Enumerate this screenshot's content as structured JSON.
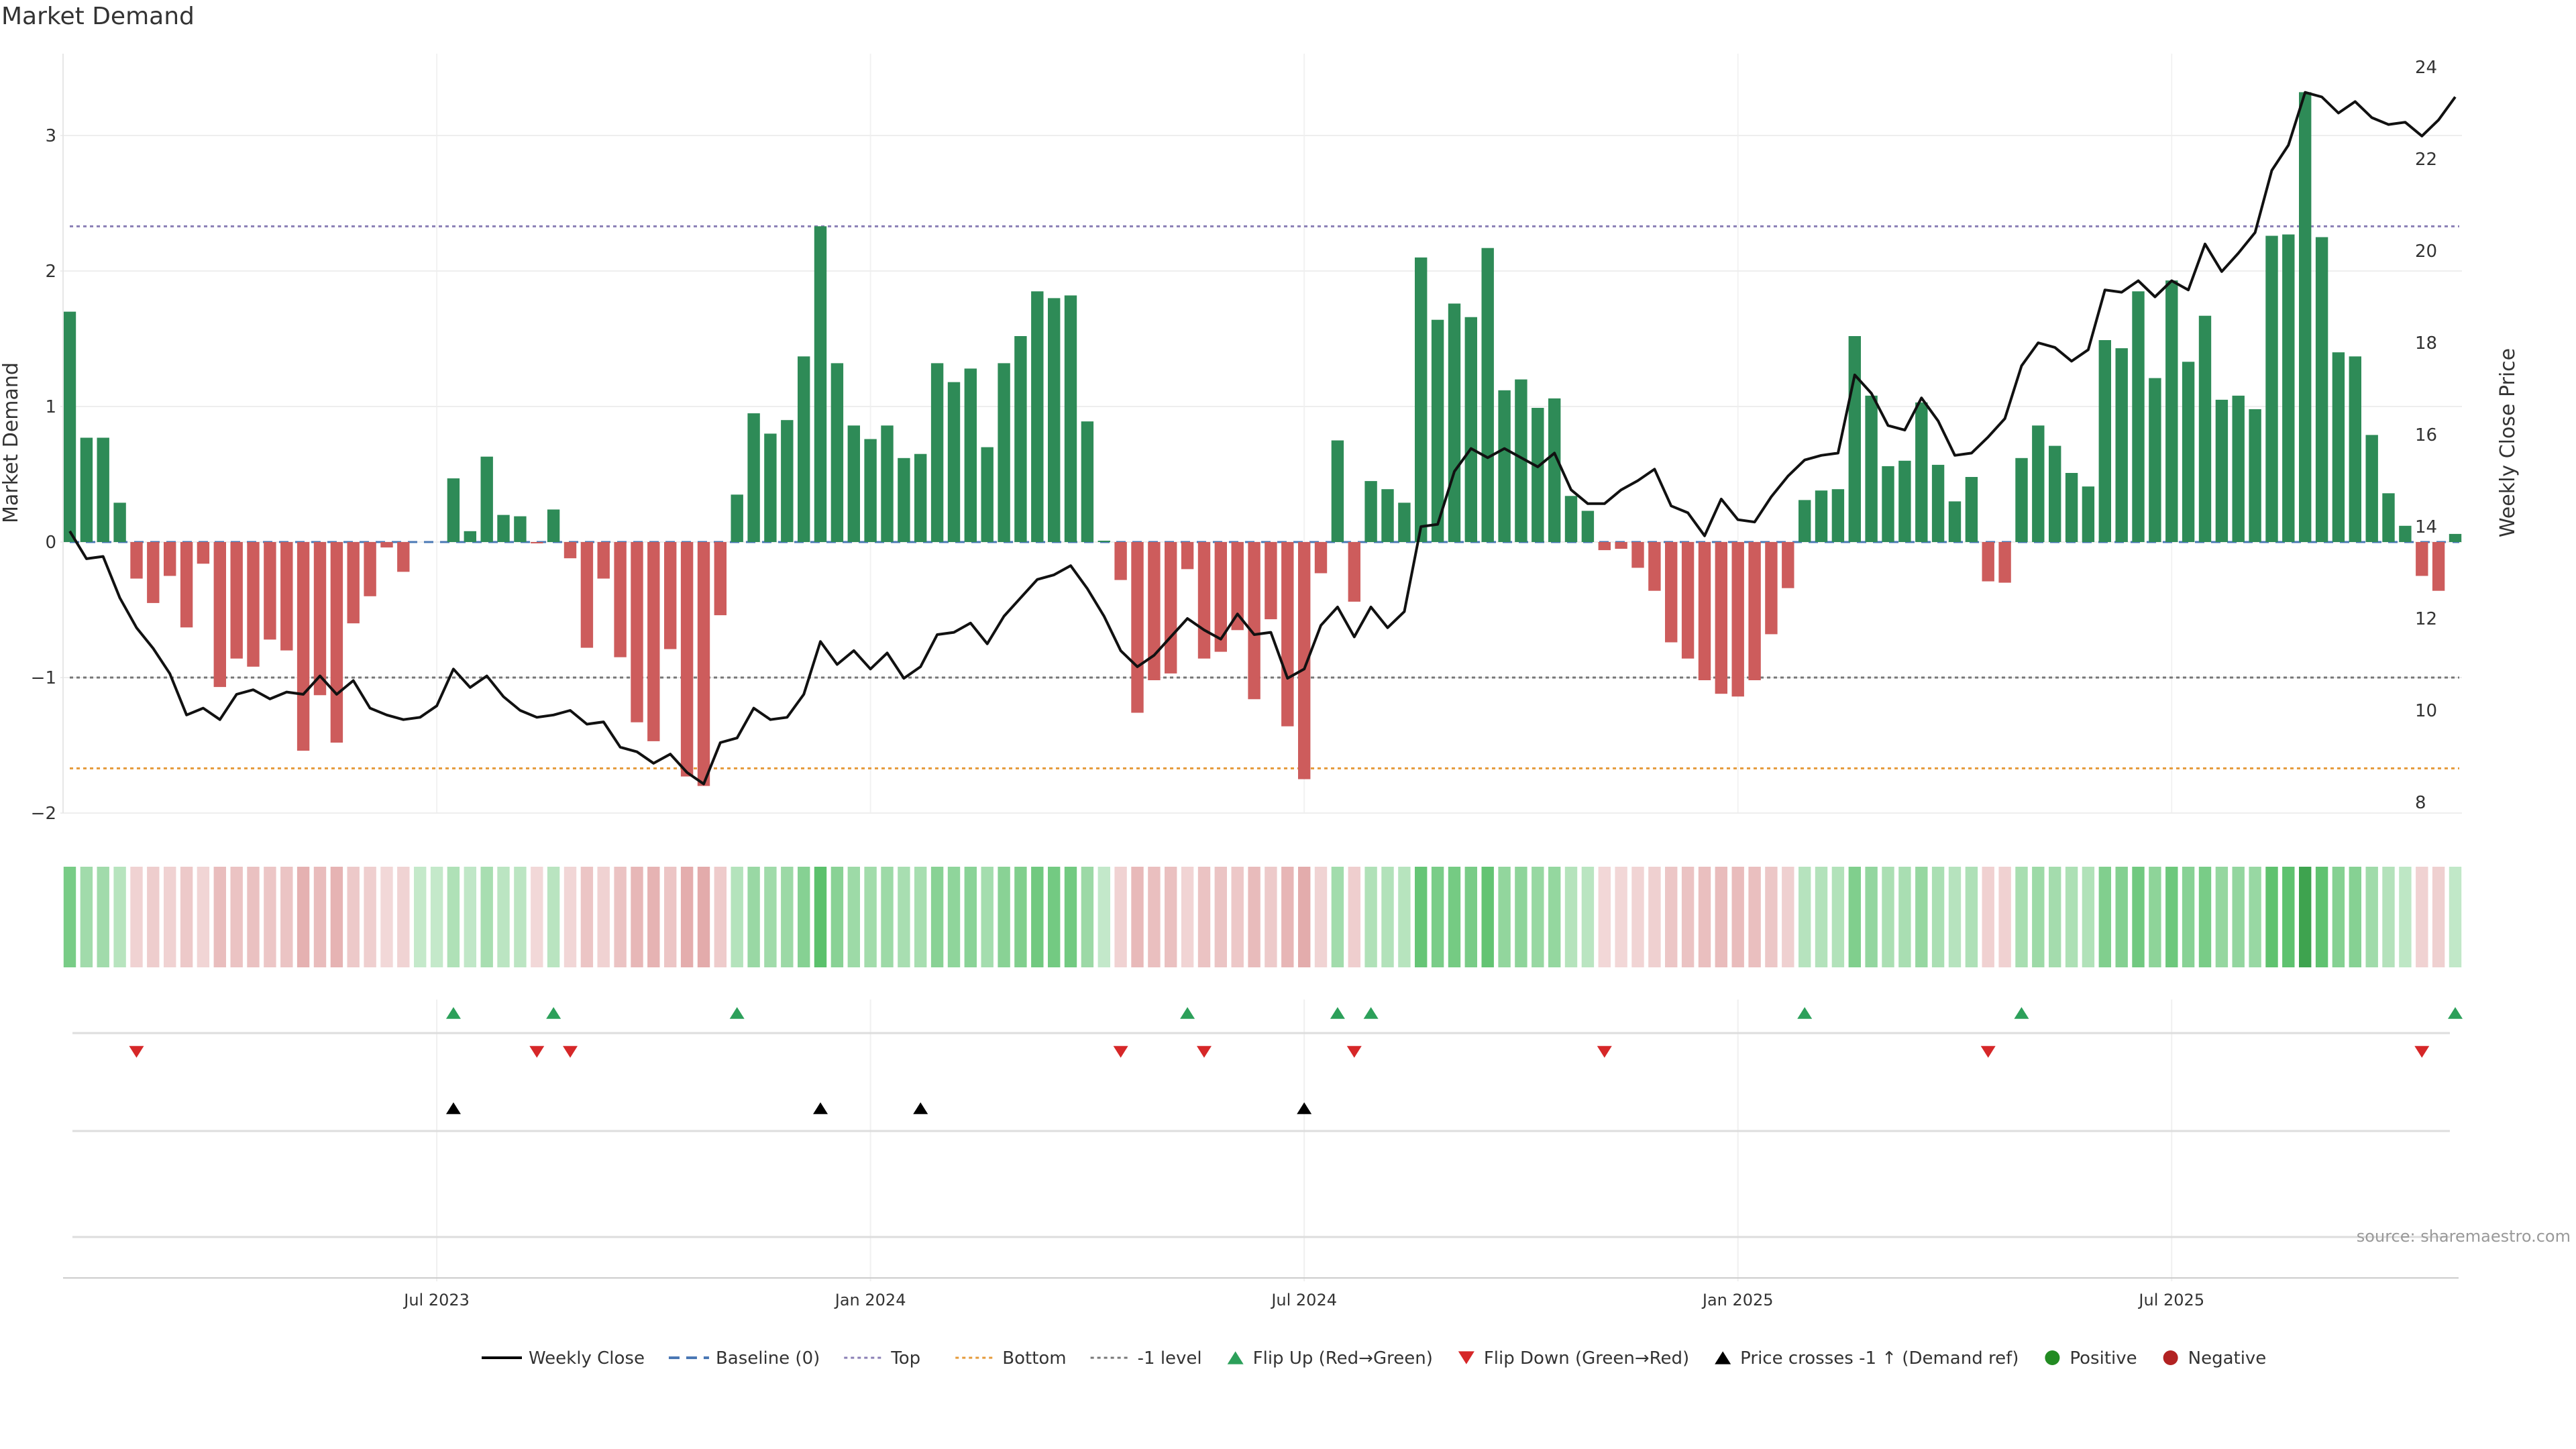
{
  "chart_data": {
    "type": "bar",
    "title": "Market Demand",
    "ylabel_left": "Market Demand",
    "ylabel_right": "Weekly Close Price",
    "source": "source: sharemaestro.com",
    "x_tick_labels": [
      {
        "label": "Jul 2023",
        "week": 22
      },
      {
        "label": "Jan 2024",
        "week": 48
      },
      {
        "label": "Jul 2024",
        "week": 74
      },
      {
        "label": "Jan 2025",
        "week": 100
      },
      {
        "label": "Jul 2025",
        "week": 126
      }
    ],
    "y_left": {
      "min": -2.0,
      "max": 3.0,
      "ticks": [
        "−2",
        "−1",
        "0",
        "1",
        "2",
        "3"
      ],
      "tick_values": [
        -2,
        -1,
        0,
        1,
        2,
        3
      ],
      "range": [
        -2.2,
        3.6
      ]
    },
    "y_right": {
      "ticks": [
        "8",
        "10",
        "12",
        "14",
        "16",
        "18",
        "20",
        "22",
        "24"
      ],
      "tick_values": [
        8,
        10,
        12,
        14,
        16,
        18,
        20,
        22,
        24
      ],
      "range": [
        7.4,
        24.4
      ]
    },
    "reference_lines": {
      "top": 2.33,
      "bottom": -1.67,
      "minus_one": -1.0,
      "baseline": 0
    },
    "colors": {
      "positive": "#2e8b57",
      "negative": "#cd5c5c",
      "price": "#111111",
      "top": "#8a7fb5",
      "bottom": "#e59a3a",
      "minus_one": "#777777",
      "baseline": "#4a78b5",
      "flip_up": "#2ca05a",
      "flip_down": "#d62728",
      "cross": "#000000"
    },
    "demand": [
      1.7,
      0.77,
      0.77,
      0.29,
      -0.27,
      -0.45,
      -0.25,
      -0.63,
      -0.16,
      -1.07,
      -0.86,
      -0.92,
      -0.72,
      -0.8,
      -1.54,
      -1.13,
      -1.48,
      -0.6,
      -0.4,
      -0.04,
      -0.22,
      0.0,
      0.0,
      0.47,
      0.08,
      0.63,
      0.2,
      0.19,
      -0.01,
      0.24,
      -0.12,
      -0.78,
      -0.27,
      -0.85,
      -1.33,
      -1.47,
      -0.79,
      -1.73,
      -1.8,
      -0.54,
      0.35,
      0.95,
      0.8,
      0.9,
      1.37,
      2.33,
      1.32,
      0.86,
      0.76,
      0.86,
      0.62,
      0.65,
      1.32,
      1.18,
      1.28,
      0.7,
      1.32,
      1.52,
      1.85,
      1.8,
      1.82,
      0.89,
      0.01,
      -0.28,
      -1.26,
      -1.02,
      -0.97,
      -0.2,
      -0.86,
      -0.81,
      -0.65,
      -1.16,
      -0.57,
      -1.36,
      -1.75,
      -0.23,
      0.75,
      -0.44,
      0.45,
      0.39,
      0.29,
      2.1,
      1.64,
      1.76,
      1.66,
      2.17,
      1.12,
      1.2,
      0.99,
      1.06,
      0.34,
      0.23,
      -0.06,
      -0.05,
      -0.19,
      -0.36,
      -0.74,
      -0.86,
      -1.02,
      -1.12,
      -1.14,
      -1.02,
      -0.68,
      -0.34,
      0.31,
      0.38,
      0.39,
      1.52,
      1.08,
      0.56,
      0.6,
      1.03,
      0.57,
      0.3,
      0.48,
      -0.29,
      -0.3,
      0.62,
      0.86,
      0.71,
      0.51,
      0.41,
      1.49,
      1.43,
      1.85,
      1.21,
      1.93,
      1.33,
      1.67,
      1.05,
      1.08,
      0.98,
      2.26,
      2.27,
      3.32,
      2.25,
      1.4,
      1.37,
      0.79,
      0.36,
      0.12,
      -0.25,
      -0.36,
      0.06
    ],
    "price": [
      13.9,
      13.3,
      13.35,
      12.45,
      11.8,
      11.35,
      10.8,
      9.9,
      10.05,
      9.8,
      10.35,
      10.45,
      10.25,
      10.4,
      10.35,
      10.75,
      10.35,
      10.65,
      10.05,
      9.9,
      9.8,
      9.85,
      10.1,
      10.9,
      10.5,
      10.75,
      10.3,
      10.0,
      9.85,
      9.9,
      10.0,
      9.7,
      9.75,
      9.2,
      9.1,
      8.85,
      9.05,
      8.65,
      8.4,
      9.3,
      9.4,
      10.05,
      9.8,
      9.85,
      10.35,
      11.5,
      11.0,
      11.3,
      10.9,
      11.25,
      10.7,
      10.95,
      11.65,
      11.7,
      11.9,
      11.45,
      12.05,
      12.45,
      12.85,
      12.95,
      13.15,
      12.65,
      12.05,
      11.3,
      10.95,
      11.2,
      11.6,
      12.0,
      11.75,
      11.55,
      12.1,
      11.65,
      11.7,
      10.7,
      10.9,
      11.85,
      12.25,
      11.6,
      12.25,
      11.8,
      12.15,
      14.0,
      14.05,
      15.2,
      15.7,
      15.5,
      15.7,
      15.5,
      15.3,
      15.6,
      14.8,
      14.5,
      14.5,
      14.8,
      15.0,
      15.25,
      14.45,
      14.3,
      13.8,
      14.6,
      14.15,
      14.1,
      14.65,
      15.1,
      15.45,
      15.55,
      15.6,
      17.3,
      16.9,
      16.2,
      16.1,
      16.8,
      16.3,
      15.55,
      15.6,
      15.95,
      16.35,
      17.5,
      18.0,
      17.9,
      17.6,
      17.85,
      19.15,
      19.1,
      19.35,
      19.0,
      19.35,
      19.15,
      20.15,
      19.55,
      19.95,
      20.4,
      21.75,
      22.3,
      23.45,
      23.35,
      23.0,
      23.25,
      22.9,
      22.75,
      22.8,
      22.5,
      22.85,
      23.35
    ],
    "flip_up_weeks": [
      23,
      29,
      40,
      67,
      76,
      78,
      104,
      117,
      143
    ],
    "flip_down_weeks": [
      4,
      28,
      30,
      63,
      68,
      77,
      92,
      115,
      141
    ],
    "price_cross_weeks": [
      23,
      45,
      51,
      74
    ],
    "legend": [
      {
        "label": "Weekly Close",
        "symbol": "line",
        "color": "#000000"
      },
      {
        "label": "Baseline (0)",
        "symbol": "dash",
        "color": "#4a78b5"
      },
      {
        "label": "Top",
        "symbol": "dot",
        "color": "#8a7fb5"
      },
      {
        "label": "Bottom",
        "symbol": "dot",
        "color": "#e59a3a"
      },
      {
        "label": "-1 level",
        "symbol": "dot",
        "color": "#777777"
      },
      {
        "label": "Flip Up (Red→Green)",
        "symbol": "tri-up",
        "color": "#2ca05a"
      },
      {
        "label": "Flip Down (Green→Red)",
        "symbol": "tri-down",
        "color": "#d62728"
      },
      {
        "label": "Price crosses -1 ↑ (Demand ref)",
        "symbol": "tri-up",
        "color": "#000000"
      },
      {
        "label": "Positive",
        "symbol": "circle",
        "color": "#228b22"
      },
      {
        "label": "Negative",
        "symbol": "circle",
        "color": "#b22222"
      }
    ]
  }
}
